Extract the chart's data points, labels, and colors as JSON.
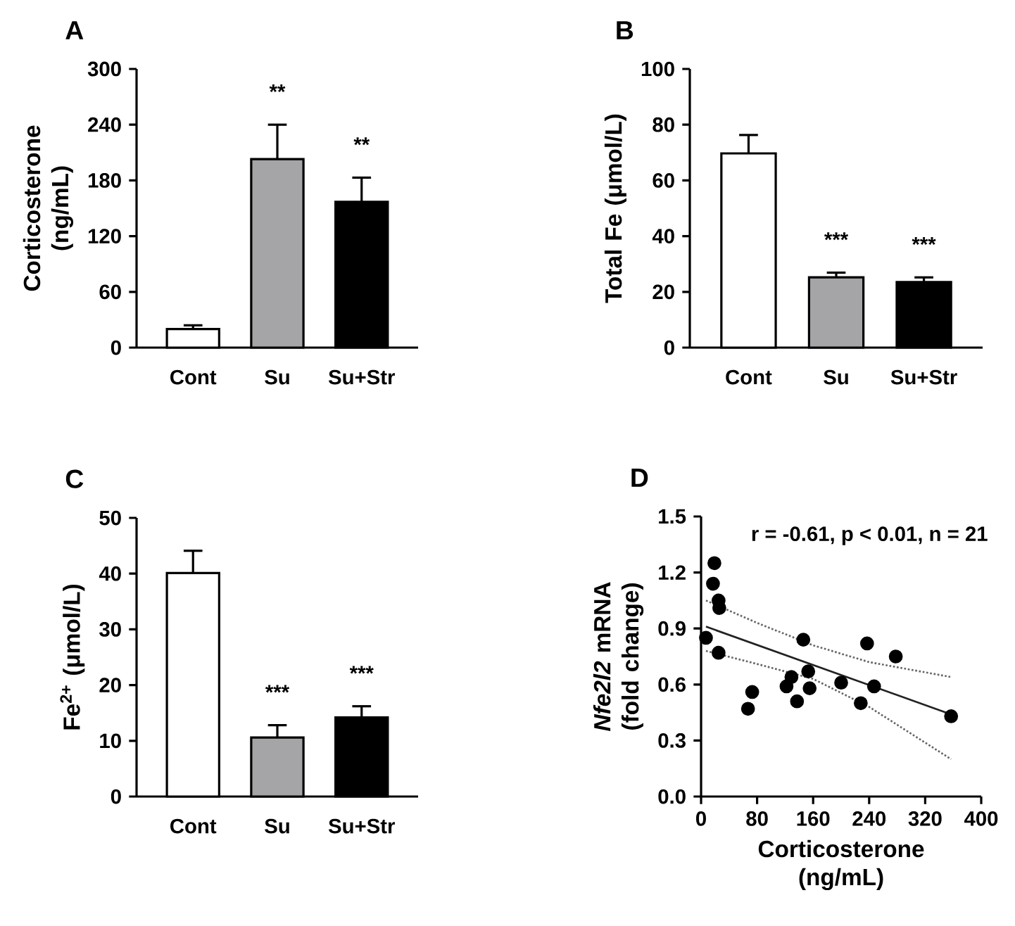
{
  "chart_data": [
    {
      "type": "bar",
      "title": "A",
      "ylabel": "Corticosterone (ng/mL)",
      "categories": [
        "Cont",
        "Su",
        "Su+Str"
      ],
      "values": [
        20,
        203,
        157
      ],
      "errors": [
        4,
        37,
        26
      ],
      "colors": [
        "#ffffff",
        "#a5a5a8",
        "#000000"
      ],
      "ylim": [
        0,
        300
      ],
      "yticks": [
        0,
        60,
        120,
        180,
        240,
        300
      ],
      "annotations": [
        "**",
        "**"
      ]
    },
    {
      "type": "bar",
      "title": "B",
      "ylabel": "Total Fe (μmol/L)",
      "categories": [
        "Cont",
        "Su",
        "Su+Str"
      ],
      "values": [
        69.7,
        25.2,
        23.5
      ],
      "errors": [
        6.6,
        1.7,
        1.7
      ],
      "colors": [
        "#ffffff",
        "#a5a5a8",
        "#000000"
      ],
      "ylim": [
        0,
        100
      ],
      "yticks": [
        0,
        20,
        40,
        60,
        80,
        100
      ],
      "annotations": [
        "***",
        "***"
      ]
    },
    {
      "type": "bar",
      "title": "C",
      "ylabel": "Fe$^{2+}$ (μmol/L)",
      "categories": [
        "Cont",
        "Su",
        "Su+Str"
      ],
      "values": [
        40.1,
        10.6,
        14.2
      ],
      "errors": [
        4,
        2.2,
        2
      ],
      "colors": [
        "#ffffff",
        "#a5a5a8",
        "#000000"
      ],
      "ylim": [
        0,
        50
      ],
      "yticks": [
        0,
        10,
        20,
        30,
        40,
        50
      ],
      "annotations": [
        "***",
        "***"
      ]
    },
    {
      "type": "scatter",
      "title": "D",
      "ylabel": "*Nfe2l2* mRNA (fold change)",
      "xlabel": "Corticosterone (ng/mL)",
      "xlim": [
        0,
        400
      ],
      "xticks": [
        0,
        80,
        160,
        240,
        320,
        400
      ],
      "ylim": [
        0,
        1.5
      ],
      "yticks": [
        {
          "value": 0,
          "label": "0.0"
        },
        {
          "value": 0.3,
          "label": "0.3"
        },
        {
          "value": 0.6,
          "label": "0.6"
        },
        {
          "value": 0.9,
          "label": "0.9"
        },
        {
          "value": 1.2,
          "label": "1.2"
        },
        {
          "value": 1.5,
          "label": "1.5"
        }
      ],
      "annotations": [
        "r = -0.61, p < 0.01, n = 21"
      ],
      "series": [
        {
          "type": "scatter",
          "color": "#000000",
          "marker": "circle",
          "x": [
            7,
            19,
            17,
            25,
            26,
            25,
            67,
            73,
            122,
            129,
            137,
            146,
            153,
            155,
            200,
            228,
            237,
            247,
            278,
            357
          ],
          "values": [
            0.85,
            1.25,
            1.14,
            1.05,
            1.01,
            0.77,
            0.47,
            0.56,
            0.59,
            0.64,
            0.51,
            0.84,
            0.67,
            0.58,
            0.61,
            0.5,
            0.82,
            0.59,
            0.75,
            0.43
          ]
        },
        {
          "type": "line",
          "color": "#222222",
          "line_style": "solid",
          "marker": "none",
          "x": [
            7,
            357
          ],
          "values": [
            0.91,
            0.44
          ]
        },
        {
          "type": "line",
          "color": "#666666",
          "line_style": "dotted",
          "marker": "none",
          "x": [
            7,
            80,
            160,
            240,
            357
          ],
          "values": [
            1.05,
            0.93,
            0.81,
            0.72,
            0.64
          ]
        },
        {
          "type": "line",
          "color": "#666666",
          "line_style": "dotted",
          "marker": "none",
          "x": [
            7,
            80,
            160,
            240,
            357
          ],
          "values": [
            0.78,
            0.71,
            0.63,
            0.48,
            0.2
          ]
        }
      ]
    }
  ]
}
